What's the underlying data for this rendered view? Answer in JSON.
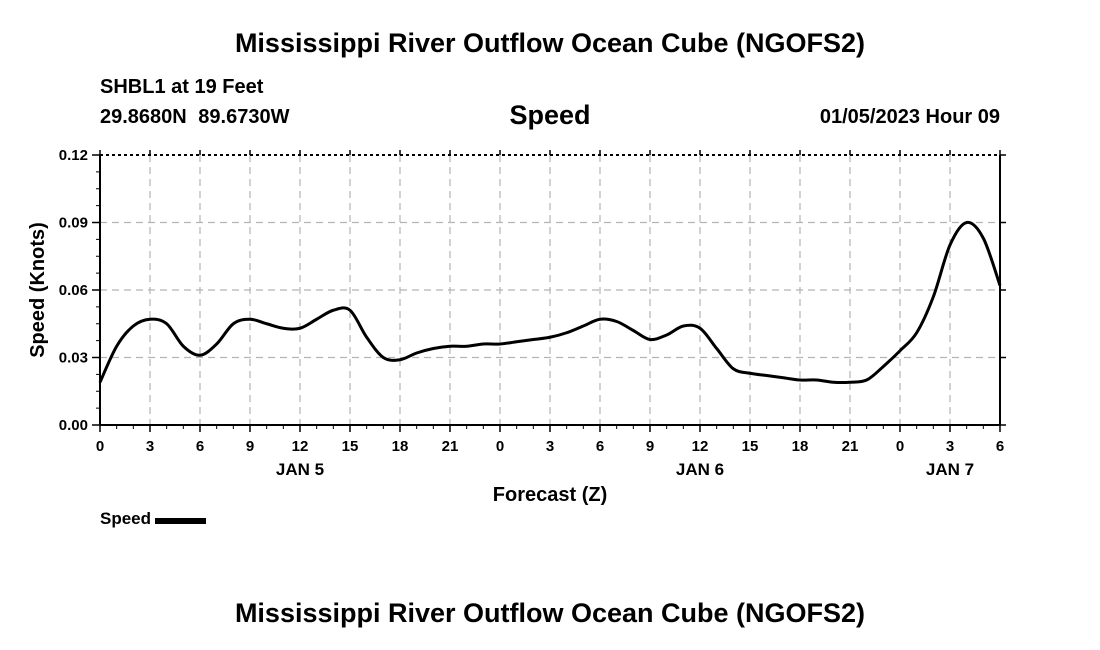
{
  "header": {
    "title": "Mississippi River Outflow Ocean Cube (NGOFS2)",
    "station": "SHBL1 at 19 Feet",
    "coords": "29.8680N  89.6730W",
    "plot_title": "Speed",
    "datetime": "01/05/2023 Hour 09"
  },
  "footer": {
    "title": "Mississippi River Outflow Ocean Cube (NGOFS2)"
  },
  "legend": {
    "label": "Speed",
    "color": "#000000"
  },
  "chart_data": {
    "type": "line",
    "title": "Speed",
    "xlabel": "Forecast (Z)",
    "ylabel": "Speed (Knots)",
    "ylim": [
      0,
      0.12
    ],
    "xlim": [
      0,
      54
    ],
    "grid": true,
    "y_ticks": [
      "0.00",
      "0.03",
      "0.06",
      "0.09",
      "0.12"
    ],
    "x_ticks": [
      "0",
      "3",
      "6",
      "9",
      "12",
      "15",
      "18",
      "21",
      "0",
      "3",
      "6",
      "9",
      "12",
      "15",
      "18",
      "21",
      "0",
      "3",
      "6"
    ],
    "day_labels": [
      {
        "label": "JAN 5",
        "x": 12
      },
      {
        "label": "JAN 6",
        "x": 36
      },
      {
        "label": "JAN 7",
        "x": 51
      }
    ],
    "legend_position": "bottom-left",
    "series": [
      {
        "name": "Speed",
        "color": "#000000",
        "x": [
          0,
          1,
          2,
          3,
          4,
          5,
          6,
          7,
          8,
          9,
          10,
          11,
          12,
          13,
          14,
          15,
          16,
          17,
          18,
          19,
          20,
          21,
          22,
          23,
          24,
          25,
          26,
          27,
          28,
          29,
          30,
          31,
          32,
          33,
          34,
          35,
          36,
          37,
          38,
          39,
          40,
          41,
          42,
          43,
          44,
          45,
          46,
          47,
          48,
          49,
          50,
          51,
          52,
          53,
          54
        ],
        "y": [
          0.019,
          0.035,
          0.044,
          0.047,
          0.045,
          0.035,
          0.031,
          0.036,
          0.045,
          0.047,
          0.045,
          0.043,
          0.043,
          0.047,
          0.051,
          0.051,
          0.039,
          0.03,
          0.029,
          0.032,
          0.034,
          0.035,
          0.035,
          0.036,
          0.036,
          0.037,
          0.038,
          0.039,
          0.041,
          0.044,
          0.047,
          0.046,
          0.042,
          0.038,
          0.04,
          0.044,
          0.043,
          0.034,
          0.025,
          0.023,
          0.022,
          0.021,
          0.02,
          0.02,
          0.019,
          0.019,
          0.02,
          0.026,
          0.033,
          0.041,
          0.057,
          0.08,
          0.09,
          0.083,
          0.062
        ]
      }
    ]
  }
}
